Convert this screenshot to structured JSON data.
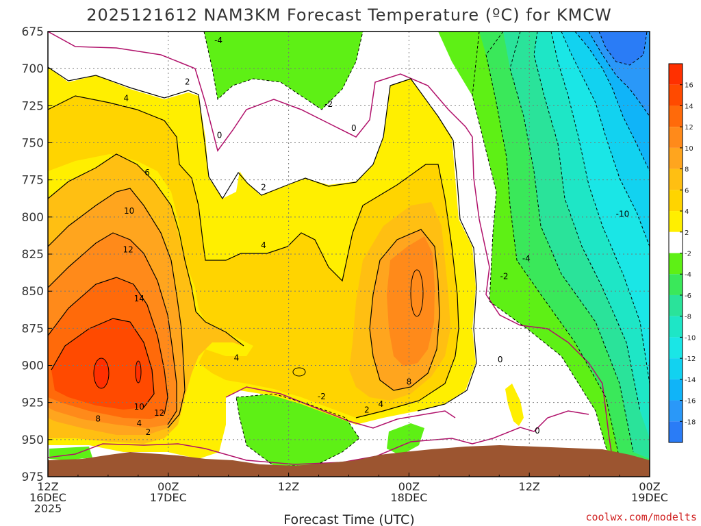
{
  "chart_data": {
    "type": "contour",
    "title": "2025121612 NAM3KM Forecast Temperature (ºC) for KMCW",
    "xlabel": "Forecast Time (UTC)",
    "ylabel": "",
    "credit": "coolwx.com/modelts",
    "y_axis": {
      "scale": "pressure-inverted",
      "range": [
        975,
        675
      ],
      "ticks": [
        "675",
        "700",
        "725",
        "750",
        "775",
        "800",
        "825",
        "850",
        "875",
        "900",
        "925",
        "950",
        "975"
      ]
    },
    "x_axis": {
      "range_hours": [
        0,
        60
      ],
      "ticks": [
        {
          "h": 0,
          "lines": [
            "12Z",
            "16DEC",
            "2025"
          ]
        },
        {
          "h": 12,
          "lines": [
            "00Z",
            "17DEC"
          ]
        },
        {
          "h": 24,
          "lines": [
            "12Z"
          ]
        },
        {
          "h": 36,
          "lines": [
            "00Z",
            "18DEC"
          ]
        },
        {
          "h": 48,
          "lines": [
            "12Z"
          ]
        },
        {
          "h": 60,
          "lines": [
            "00Z",
            "19DEC"
          ]
        }
      ]
    },
    "grid": true,
    "colorbar": {
      "placement": "right",
      "levels": [
        {
          "label": "16",
          "color": "#ff4a00"
        },
        {
          "label": "14",
          "color": "#ff6a0a"
        },
        {
          "label": "12",
          "color": "#ff8a1a"
        },
        {
          "label": "10",
          "color": "#ffa51e"
        },
        {
          "label": "8",
          "color": "#ffbf12"
        },
        {
          "label": "6",
          "color": "#ffd400"
        },
        {
          "label": "4",
          "color": "#ffef00"
        },
        {
          "label": "2",
          "color": "#ffffff"
        },
        {
          "label": "-2",
          "color": "#5ef015"
        },
        {
          "label": "-4",
          "color": "#3ae85a"
        },
        {
          "label": "-6",
          "color": "#2ae39a"
        },
        {
          "label": "-8",
          "color": "#1ee6c6"
        },
        {
          "label": "-10",
          "color": "#1ae6e6"
        },
        {
          "label": "-12",
          "color": "#12d2f0"
        },
        {
          "label": "-14",
          "color": "#10b4f8"
        },
        {
          "label": "-16",
          "color": "#2a98f8"
        },
        {
          "label": "-18",
          "color": "#2a7cf6"
        }
      ],
      "top_color": "#ff3000"
    },
    "contour_labels": [
      {
        "text": "-4",
        "h": 17.0,
        "p": 681
      },
      {
        "text": "-2",
        "h": 28.0,
        "p": 724
      },
      {
        "text": "0",
        "h": 30.5,
        "p": 740
      },
      {
        "text": "2",
        "h": 13.9,
        "p": 709
      },
      {
        "text": "0",
        "h": 17.1,
        "p": 745
      },
      {
        "text": "4",
        "h": 7.8,
        "p": 720
      },
      {
        "text": "6",
        "h": 9.9,
        "p": 770
      },
      {
        "text": "2",
        "h": 21.5,
        "p": 780
      },
      {
        "text": "10",
        "h": 8.1,
        "p": 796
      },
      {
        "text": "4",
        "h": 21.5,
        "p": 819
      },
      {
        "text": "12",
        "h": 8.0,
        "p": 822
      },
      {
        "text": "14",
        "h": 9.1,
        "p": 855
      },
      {
        "text": "4",
        "h": 18.8,
        "p": 895
      },
      {
        "text": "10",
        "h": 9.1,
        "p": 928
      },
      {
        "text": "12",
        "h": 11.1,
        "p": 932
      },
      {
        "text": "8",
        "h": 5.0,
        "p": 936
      },
      {
        "text": "4",
        "h": 9.1,
        "p": 939
      },
      {
        "text": "2",
        "h": 10.0,
        "p": 945
      },
      {
        "text": "8",
        "h": 36.0,
        "p": 911
      },
      {
        "text": "4",
        "h": 33.2,
        "p": 926
      },
      {
        "text": "2",
        "h": 31.8,
        "p": 930
      },
      {
        "text": "-2",
        "h": 27.3,
        "p": 921
      },
      {
        "text": "0",
        "h": 45.1,
        "p": 896
      },
      {
        "text": "0",
        "h": 48.8,
        "p": 944
      },
      {
        "text": "-2",
        "h": 45.5,
        "p": 840
      },
      {
        "text": "-4",
        "h": 47.7,
        "p": 828
      },
      {
        "text": "-10",
        "h": 57.3,
        "p": 798
      }
    ]
  }
}
